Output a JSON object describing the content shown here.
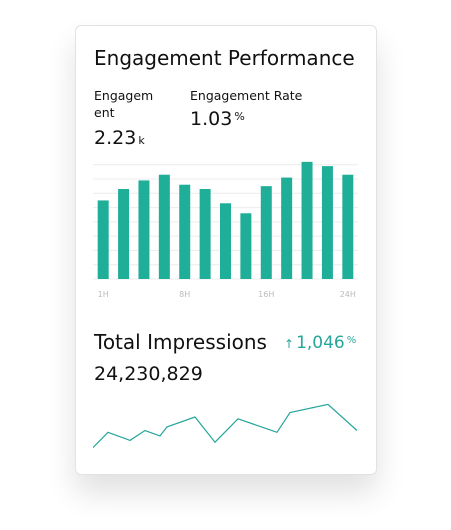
{
  "header": {
    "title": "Engagement Performance"
  },
  "metrics": [
    {
      "label": "Engagement",
      "value": "2.23",
      "unit": "k"
    },
    {
      "label": "Engagement Rate",
      "value": "1.03",
      "unit": "%"
    }
  ],
  "chart_data": [
    {
      "type": "bar",
      "color": "#1fae98",
      "categories": [
        "1H",
        null,
        null,
        null,
        "8H",
        null,
        null,
        null,
        "16H",
        null,
        null,
        null,
        "24H"
      ],
      "values": [
        5.5,
        6.3,
        6.9,
        7.3,
        6.6,
        6.3,
        5.3,
        4.6,
        6.5,
        7.1,
        8.2,
        7.9,
        7.3
      ],
      "ylim": [
        0,
        8.4
      ],
      "yticks": [
        0,
        1,
        2,
        3,
        4,
        5,
        6,
        7,
        8
      ],
      "grid": true
    },
    {
      "type": "line",
      "color": "#26a69a",
      "x": [
        0,
        15,
        37,
        52,
        67,
        74,
        102,
        122,
        145,
        184,
        197,
        235,
        264
      ],
      "values": [
        6,
        23,
        14,
        25,
        19,
        29,
        40,
        12,
        38,
        23,
        45,
        54,
        25
      ],
      "xlim": [
        0,
        264
      ],
      "ylim": [
        0,
        60
      ]
    }
  ],
  "impressions": {
    "label": "Total Impressions",
    "change_arrow": "↑",
    "change": "1,046",
    "change_unit": "%",
    "value": "24,230,829"
  }
}
